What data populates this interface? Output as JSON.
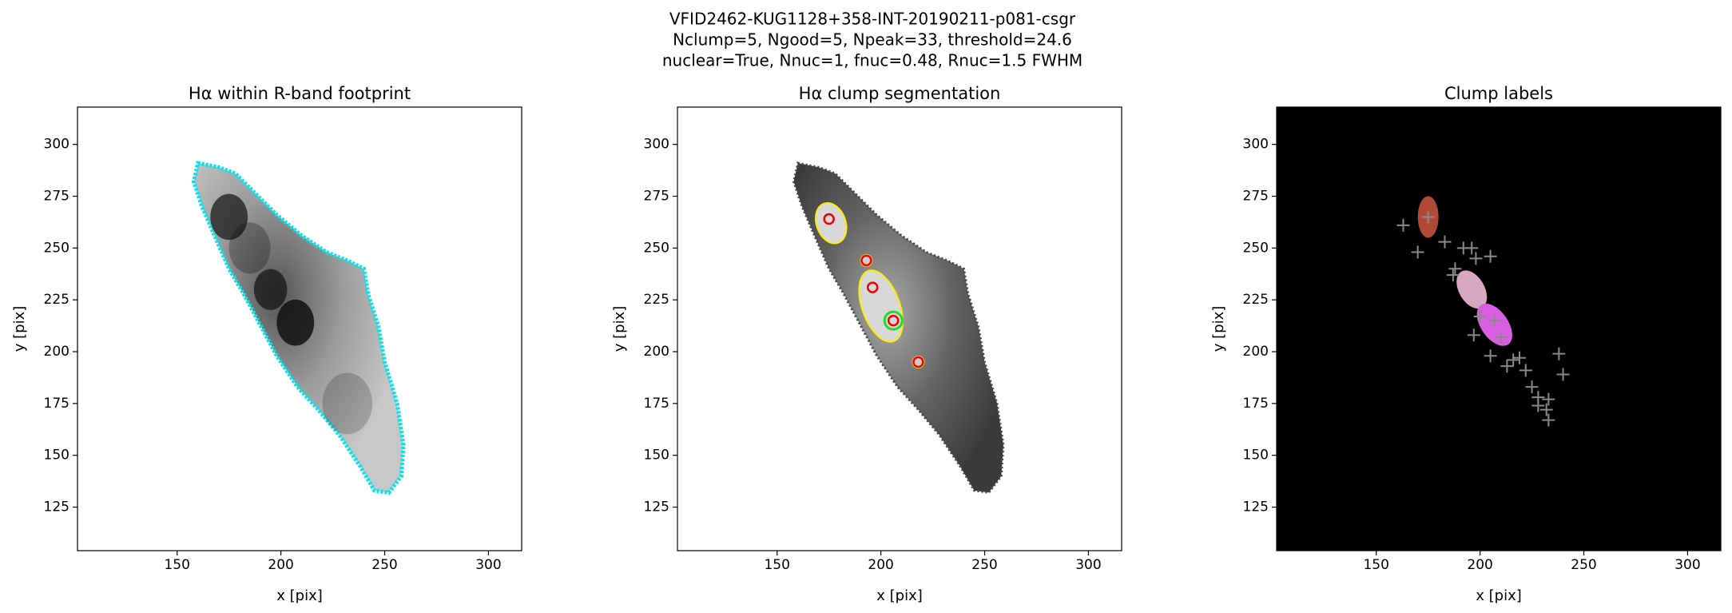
{
  "suptitle": [
    "VFID2462-KUG1128+358-INT-20190211-p081-csgr",
    "Nclump=5, Ngood=5, Npeak=33, threshold=24.6",
    "nuclear=True, Nnuc=1, fnuc=0.48, Rnuc=1.5 FWHM"
  ],
  "chart_data": [
    {
      "type": "image",
      "title": "Hα within R-band footprint",
      "xlabel": "x [pix]",
      "ylabel": "y [pix]",
      "xlim": [
        102,
        316
      ],
      "ylim": [
        104,
        318
      ],
      "xticks": [
        150,
        200,
        250,
        300
      ],
      "yticks": [
        125,
        150,
        175,
        200,
        225,
        250,
        275,
        300
      ],
      "facecolor": "#ffffff"
    },
    {
      "type": "image",
      "title": "Hα clump segmentation",
      "xlabel": "x [pix]",
      "ylabel": "y [pix]",
      "xlim": [
        102,
        316
      ],
      "ylim": [
        104,
        318
      ],
      "xticks": [
        150,
        200,
        250,
        300
      ],
      "yticks": [
        125,
        150,
        175,
        200,
        225,
        250,
        275,
        300
      ],
      "facecolor": "#ffffff"
    },
    {
      "type": "image",
      "title": "Clump labels",
      "xlabel": "x [pix]",
      "ylabel": "y [pix]",
      "xlim": [
        102,
        316
      ],
      "ylim": [
        104,
        318
      ],
      "xticks": [
        150,
        200,
        250,
        300
      ],
      "yticks": [
        125,
        150,
        175,
        200,
        225,
        250,
        275,
        300
      ],
      "facecolor": "#000000"
    }
  ]
}
